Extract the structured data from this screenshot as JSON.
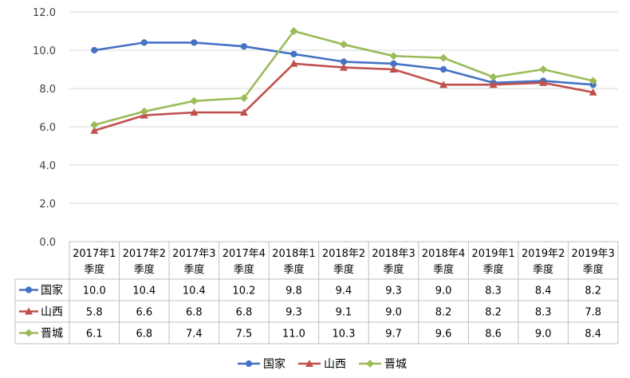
{
  "chart_data": {
    "type": "line",
    "categories": [
      [
        "2017年1",
        "季度"
      ],
      [
        "2017年2",
        "季度"
      ],
      [
        "2017年3",
        "季度"
      ],
      [
        "2017年4",
        "季度"
      ],
      [
        "2018年1",
        "季度"
      ],
      [
        "2018年2",
        "季度"
      ],
      [
        "2018年3",
        "季度"
      ],
      [
        "2018年4",
        "季度"
      ],
      [
        "2019年1",
        "季度"
      ],
      [
        "2019年2",
        "季度"
      ],
      [
        "2019年3",
        "季度"
      ]
    ],
    "series": [
      {
        "name": "国家",
        "color": "#4472c4",
        "marker": "circle",
        "values": [
          10.0,
          10.4,
          10.4,
          10.2,
          9.8,
          9.4,
          9.3,
          9.0,
          8.3,
          8.4,
          8.2
        ],
        "labels": [
          "10.0",
          "10.4",
          "10.4",
          "10.2",
          "9.8",
          "9.4",
          "9.3",
          "9.0",
          "8.3",
          "8.4",
          "8.2"
        ]
      },
      {
        "name": "山西",
        "color": "#c0504d",
        "marker": "triangle",
        "values": [
          5.8,
          6.6,
          6.75,
          6.75,
          9.3,
          9.1,
          9.0,
          8.2,
          8.2,
          8.3,
          7.8
        ],
        "labels": [
          "5.8",
          "6.6",
          "6.8",
          "6.8",
          "9.3",
          "9.1",
          "9.0",
          "8.2",
          "8.2",
          "8.3",
          "7.8"
        ]
      },
      {
        "name": "晋城",
        "color": "#9bbb59",
        "marker": "diamond",
        "values": [
          6.1,
          6.8,
          7.35,
          7.5,
          11.0,
          10.3,
          9.7,
          9.6,
          8.6,
          9.0,
          8.4
        ],
        "labels": [
          "6.1",
          "6.8",
          "7.4",
          "7.5",
          "11.0",
          "10.3",
          "9.7",
          "9.6",
          "8.6",
          "9.0",
          "8.4"
        ]
      }
    ],
    "y_ticks": [
      "0.0",
      "2.0",
      "4.0",
      "6.0",
      "8.0",
      "10.0",
      "12.0"
    ],
    "ylim": [
      0,
      12
    ],
    "grid": true,
    "legend": "bottom",
    "data_table": true
  }
}
